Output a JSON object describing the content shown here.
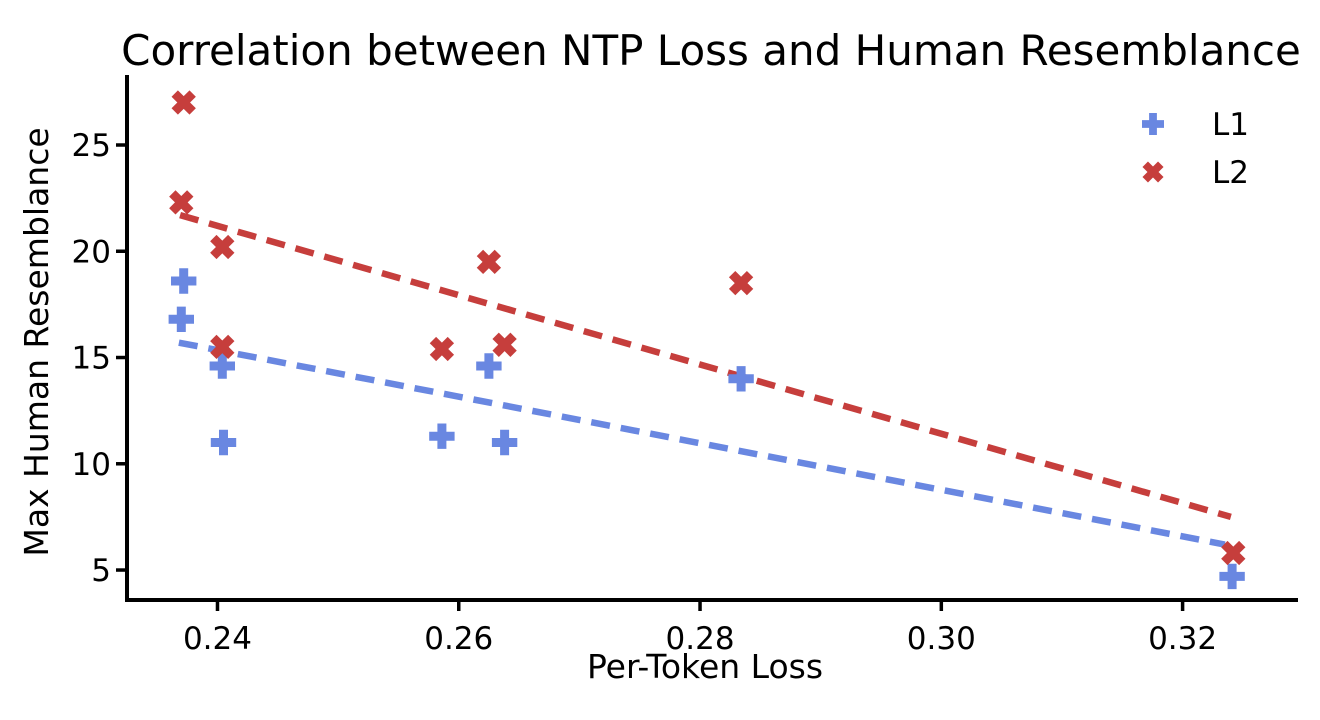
{
  "chart_data": {
    "type": "scatter",
    "title": "Correlation between NTP Loss and Human Resemblance",
    "xlabel": "Per-Token Loss",
    "ylabel": "Max Human Resemblance",
    "xlim": [
      0.2325,
      0.3294
    ],
    "ylim": [
      3.59,
      28.2
    ],
    "x_ticks": [
      0.24,
      0.26,
      0.28,
      0.3,
      0.32
    ],
    "x_tick_labels": [
      "0.24",
      "0.26",
      "0.28",
      "0.30",
      "0.32"
    ],
    "y_ticks": [
      5,
      10,
      15,
      20,
      25
    ],
    "y_tick_labels": [
      "5",
      "10",
      "15",
      "20",
      "25"
    ],
    "grid": false,
    "legend_position": "upper-right",
    "background_color": "#ffffff",
    "text_color": "#000000",
    "series": [
      {
        "name": "L1",
        "color": "#6987E1",
        "marker": "plus_filled",
        "points": [
          [
            0.2372,
            18.6
          ],
          [
            0.237,
            16.8
          ],
          [
            0.2404,
            14.6
          ],
          [
            0.2405,
            11.0
          ],
          [
            0.2586,
            11.3
          ],
          [
            0.2625,
            14.6
          ],
          [
            0.2638,
            11.0
          ],
          [
            0.2834,
            14.0
          ],
          [
            0.3241,
            4.7
          ]
        ],
        "trendline": {
          "style": "dashed",
          "from": [
            0.2368,
            15.7
          ],
          "to": [
            0.3235,
            6.2
          ]
        }
      },
      {
        "name": "L2",
        "color": "#C63E3C",
        "marker": "x_filled",
        "points": [
          [
            0.2372,
            27.0
          ],
          [
            0.237,
            22.3
          ],
          [
            0.2404,
            20.2
          ],
          [
            0.2404,
            15.5
          ],
          [
            0.2586,
            15.4
          ],
          [
            0.2625,
            19.5
          ],
          [
            0.2638,
            15.6
          ],
          [
            0.2834,
            18.5
          ],
          [
            0.3242,
            5.8
          ]
        ],
        "trendline": {
          "style": "dashed",
          "from": [
            0.2369,
            21.7
          ],
          "to": [
            0.324,
            7.5
          ]
        }
      }
    ]
  }
}
